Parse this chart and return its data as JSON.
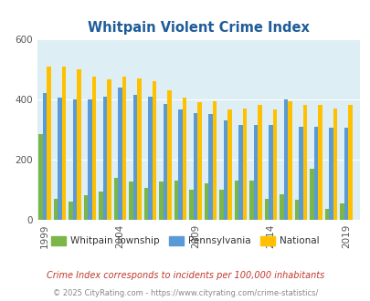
{
  "title": "Whitpain Violent Crime Index",
  "years": [
    1999,
    2000,
    2001,
    2002,
    2003,
    2004,
    2005,
    2006,
    2007,
    2008,
    2009,
    2010,
    2011,
    2012,
    2013,
    2014,
    2015,
    2016,
    2017,
    2018,
    2019
  ],
  "whitpain": [
    285,
    70,
    60,
    80,
    95,
    140,
    128,
    105,
    128,
    130,
    100,
    120,
    100,
    130,
    130,
    70,
    85,
    65,
    170,
    35,
    55
  ],
  "pennsylvania": [
    420,
    407,
    400,
    400,
    410,
    440,
    415,
    410,
    385,
    365,
    355,
    350,
    330,
    315,
    315,
    315,
    400,
    310,
    310,
    305,
    305
  ],
  "national": [
    510,
    510,
    500,
    475,
    465,
    475,
    470,
    460,
    430,
    405,
    390,
    395,
    365,
    370,
    380,
    365,
    395,
    380,
    380,
    370,
    380
  ],
  "colors": {
    "whitpain": "#7ab648",
    "pennsylvania": "#5b9bd5",
    "national": "#ffc000"
  },
  "bg_color": "#ddeef4",
  "ylim": [
    0,
    600
  ],
  "yticks": [
    0,
    200,
    400,
    600
  ],
  "xticks": [
    1999,
    2004,
    2009,
    2014,
    2019
  ],
  "footnote1": "Crime Index corresponds to incidents per 100,000 inhabitants",
  "footnote2": "© 2025 CityRating.com - https://www.cityrating.com/crime-statistics/",
  "legend_labels": [
    "Whitpain Township",
    "Pennsylvania",
    "National"
  ],
  "title_color": "#1f5c99",
  "footnote1_color": "#c0392b",
  "footnote2_color": "#888888"
}
